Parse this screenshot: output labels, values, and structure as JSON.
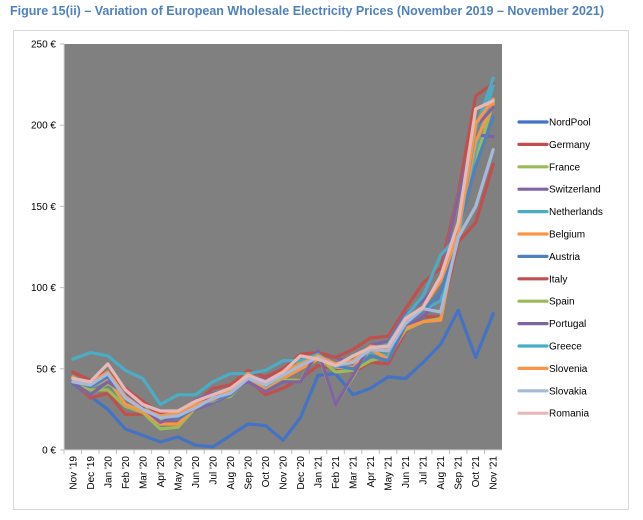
{
  "chart_data": {
    "type": "line",
    "title": "Figure 15(ii) – Variation of European Wholesale Electricity Prices (November 2019 – November 2021)",
    "xlabel": "",
    "ylabel": "",
    "ylim": [
      0,
      250
    ],
    "yticks": [
      "0 €",
      "50 €",
      "100 €",
      "150 €",
      "200 €",
      "250 €"
    ],
    "ytick_values": [
      0,
      50,
      100,
      150,
      200,
      250
    ],
    "grid": false,
    "plot_background": "#808080",
    "legend_position": "right",
    "categories": [
      "Nov '19",
      "Dec '19",
      "Jan '20",
      "Feb '20",
      "Mar '20",
      "Apr '20",
      "May '20",
      "Jun '20",
      "Jul '20",
      "Aug '20",
      "Sep '20",
      "Oct '20",
      "Nov '20",
      "Dec '20",
      "Jan '21",
      "Feb '21",
      "Mar '21",
      "Apr '21",
      "May '21",
      "Jun '21",
      "Jul '21",
      "Aug '21",
      "Sep '21",
      "Oct '21",
      "Nov '21"
    ],
    "series": [
      {
        "name": "NordPool",
        "color": "#4472c4",
        "values": [
          41,
          33,
          25,
          13,
          9,
          5,
          8,
          3,
          2,
          9,
          16,
          15,
          6,
          20,
          46,
          47,
          34,
          38,
          45,
          44,
          54,
          65,
          86,
          57,
          84
        ]
      },
      {
        "name": "Germany",
        "color": "#c0504d",
        "values": [
          43,
          32,
          35,
          22,
          22,
          17,
          18,
          26,
          34,
          35,
          43,
          34,
          38,
          44,
          52,
          50,
          48,
          54,
          53,
          73,
          82,
          82,
          128,
          140,
          176
        ]
      },
      {
        "name": "France",
        "color": "#9bbb59",
        "values": [
          43,
          37,
          37,
          27,
          23,
          13,
          14,
          26,
          31,
          33,
          45,
          41,
          46,
          54,
          57,
          48,
          49,
          55,
          58,
          74,
          79,
          81,
          136,
          178,
          214
        ]
      },
      {
        "name": "Switzerland",
        "color": "#8064a2",
        "values": [
          44,
          39,
          45,
          33,
          29,
          21,
          21,
          25,
          29,
          34,
          44,
          44,
          47,
          50,
          59,
          57,
          53,
          62,
          62,
          76,
          82,
          94,
          140,
          194,
          193
        ]
      },
      {
        "name": "Netherlands",
        "color": "#4bacc6",
        "values": [
          45,
          39,
          43,
          28,
          24,
          19,
          19,
          28,
          30,
          35,
          43,
          38,
          46,
          52,
          56,
          51,
          50,
          60,
          58,
          78,
          86,
          92,
          130,
          185,
          225
        ]
      },
      {
        "name": "Belgium",
        "color": "#f79646",
        "values": [
          45,
          39,
          44,
          28,
          24,
          16,
          16,
          26,
          31,
          34,
          45,
          37,
          44,
          50,
          56,
          51,
          51,
          62,
          56,
          75,
          79,
          80,
          135,
          190,
          213
        ]
      },
      {
        "name": "Austria",
        "color": "#4f81bd",
        "values": [
          43,
          39,
          45,
          33,
          26,
          18,
          19,
          26,
          31,
          34,
          44,
          41,
          46,
          53,
          58,
          52,
          50,
          58,
          55,
          77,
          86,
          97,
          135,
          175,
          205
        ]
      },
      {
        "name": "Italy",
        "color": "#c0504d",
        "values": [
          48,
          43,
          48,
          38,
          30,
          22,
          22,
          29,
          38,
          40,
          49,
          45,
          50,
          59,
          60,
          57,
          62,
          69,
          70,
          87,
          103,
          112,
          158,
          218,
          226
        ]
      },
      {
        "name": "Spain",
        "color": "#9bbb59",
        "values": [
          42,
          34,
          41,
          35,
          27,
          18,
          22,
          31,
          35,
          37,
          42,
          36,
          43,
          43,
          60,
          28,
          45,
          65,
          67,
          84,
          92,
          105,
          156,
          199,
          211
        ]
      },
      {
        "name": "Portugal",
        "color": "#8064a2",
        "values": [
          42,
          34,
          42,
          35,
          26,
          17,
          21,
          31,
          35,
          37,
          42,
          36,
          42,
          42,
          61,
          28,
          46,
          65,
          67,
          84,
          92,
          105,
          156,
          199,
          211
        ]
      },
      {
        "name": "Greece",
        "color": "#4bacc6",
        "values": [
          56,
          60,
          58,
          49,
          44,
          28,
          34,
          34,
          42,
          47,
          47,
          49,
          55,
          55,
          59,
          51,
          58,
          62,
          65,
          82,
          95,
          120,
          132,
          198,
          229
        ]
      },
      {
        "name": "Slovenia",
        "color": "#f79646",
        "values": [
          44,
          41,
          48,
          33,
          25,
          21,
          23,
          28,
          31,
          37,
          47,
          40,
          48,
          53,
          58,
          53,
          55,
          64,
          62,
          80,
          88,
          104,
          133,
          201,
          216
        ]
      },
      {
        "name": "Slovakia",
        "color": "#a5b9d9",
        "values": [
          42,
          40,
          47,
          32,
          25,
          20,
          21,
          26,
          32,
          35,
          44,
          40,
          46,
          52,
          57,
          52,
          54,
          62,
          61,
          78,
          87,
          85,
          131,
          150,
          185
        ]
      },
      {
        "name": "Romania",
        "color": "#e6b9b8",
        "values": [
          44,
          42,
          53,
          37,
          28,
          24,
          24,
          30,
          34,
          38,
          46,
          42,
          48,
          58,
          56,
          52,
          58,
          63,
          64,
          81,
          88,
          107,
          140,
          210,
          215
        ]
      }
    ]
  }
}
